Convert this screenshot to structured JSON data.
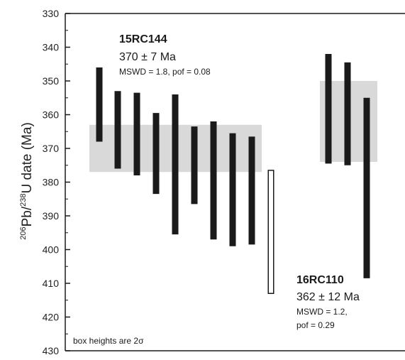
{
  "chart_data": {
    "type": "bar",
    "ylabel": {
      "pre": "206",
      "main1": "Pb/",
      "mid": "238",
      "main2": "U date (Ma)"
    },
    "ylim": [
      330,
      430
    ],
    "y_inverted": true,
    "yticks": [
      330,
      340,
      350,
      360,
      370,
      380,
      390,
      400,
      410,
      420,
      430
    ],
    "note": "box heights are 2σ",
    "samples": [
      {
        "id": "15RC144",
        "age_text": "370 ± 7 Ma",
        "stats": [
          "MSWD = 1.8, pof = 0.08"
        ],
        "weighted_mean_band": [
          363,
          377
        ],
        "grains": [
          {
            "low": 346,
            "high": 368,
            "included": true
          },
          {
            "low": 353,
            "high": 376,
            "included": true
          },
          {
            "low": 353.5,
            "high": 378,
            "included": true
          },
          {
            "low": 359.5,
            "high": 383.5,
            "included": true
          },
          {
            "low": 354,
            "high": 395.5,
            "included": true
          },
          {
            "low": 363.5,
            "high": 386.5,
            "included": true
          },
          {
            "low": 362,
            "high": 397,
            "included": true
          },
          {
            "low": 365.5,
            "high": 399,
            "included": true
          },
          {
            "low": 366.5,
            "high": 398.5,
            "included": true
          },
          {
            "low": 376.5,
            "high": 413,
            "included": false
          }
        ]
      },
      {
        "id": "16RC110",
        "age_text": "362 ± 12 Ma",
        "stats": [
          "MSWD = 1.2,",
          "pof = 0.29"
        ],
        "weighted_mean_band": [
          350,
          374
        ],
        "grains": [
          {
            "low": 342,
            "high": 374.5,
            "included": true
          },
          {
            "low": 344.5,
            "high": 375,
            "included": true
          },
          {
            "low": 355,
            "high": 408.5,
            "included": true
          }
        ]
      }
    ],
    "colors": {
      "included": "#1a1a1a",
      "excluded_fill": "#ffffff",
      "excluded_stroke": "#1a1a1a",
      "band": "#d9d9d9",
      "axis": "#1a1a1a"
    }
  }
}
